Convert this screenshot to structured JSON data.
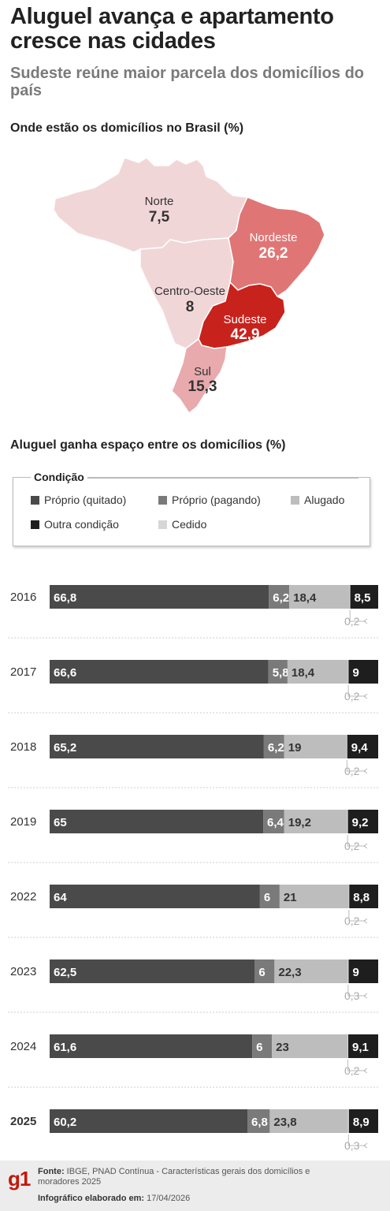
{
  "header": {
    "title": "Aluguel avança e apartamento cresce nas cidades",
    "subtitle": "Sudeste reúne maior parcela dos domicílios do país"
  },
  "map_section": {
    "title": "Onde estão os domicílios no Brasil (%)",
    "regions": [
      {
        "name": "Norte",
        "value": "7,5",
        "color": "#f1d6d8"
      },
      {
        "name": "Nordeste",
        "value": "26,2",
        "color": "#df7675"
      },
      {
        "name": "Centro-Oeste",
        "value": "8",
        "color": "#f1d6d8"
      },
      {
        "name": "Sudeste",
        "value": "42,9",
        "color": "#c8221c"
      },
      {
        "name": "Sul",
        "value": "15,3",
        "color": "#e8aaad"
      }
    ]
  },
  "bar_section": {
    "title": "Aluguel ganha espaço entre os domicílios (%)"
  },
  "legend": {
    "title": "Condição",
    "items": [
      {
        "label": "Próprio (quitado)",
        "color": "#4a4a4a"
      },
      {
        "label": "Próprio (pagando)",
        "color": "#7a7a7a"
      },
      {
        "label": "Alugado",
        "color": "#bdbdbd"
      },
      {
        "label": "Outra condição",
        "color": "#1e1e1e"
      },
      {
        "label": "Cedido",
        "color": "#d6d6d6"
      }
    ]
  },
  "chart_data": {
    "type": "bar",
    "orientation": "horizontal",
    "stacked": true,
    "xlim": [
      0,
      100
    ],
    "categories": [
      "2016",
      "2017",
      "2018",
      "2019",
      "2022",
      "2023",
      "2024",
      "2025"
    ],
    "segment_order": [
      "Próprio (quitado)",
      "Próprio (pagando)",
      "Alugado",
      "Cedido",
      "Outra condição"
    ],
    "series": [
      {
        "name": "Próprio (quitado)",
        "color": "#4a4a4a",
        "values": [
          66.8,
          66.6,
          65.2,
          65,
          64,
          62.5,
          61.6,
          60.2
        ],
        "labels": [
          "66,8",
          "66,6",
          "65,2",
          "65",
          "64",
          "62,5",
          "61,6",
          "60,2"
        ]
      },
      {
        "name": "Próprio (pagando)",
        "color": "#7a7a7a",
        "values": [
          6.2,
          5.8,
          6.2,
          6.4,
          6,
          6,
          6,
          6.8
        ],
        "labels": [
          "6,2",
          "5,8",
          "6,2",
          "6,4",
          "6",
          "6",
          "6",
          "6,8"
        ]
      },
      {
        "name": "Alugado",
        "color": "#bdbdbd",
        "values": [
          18.4,
          18.4,
          19,
          19.2,
          21,
          22.3,
          23,
          23.8
        ],
        "labels": [
          "18,4",
          "18,4",
          "19",
          "19,2",
          "21",
          "22,3",
          "23",
          "23,8"
        ]
      },
      {
        "name": "Cedido",
        "color": "#d6d6d6",
        "values": [
          0.2,
          0.2,
          0.2,
          0.2,
          0.2,
          0.3,
          0.2,
          0.3
        ],
        "labels": [
          "0,2",
          "0,2",
          "0,2",
          "0,2",
          "0,2",
          "0,3",
          "0,2",
          "0,3"
        ]
      },
      {
        "name": "Outra condição",
        "color": "#1e1e1e",
        "values": [
          8.5,
          9,
          9.4,
          9.2,
          8.8,
          9,
          9.1,
          8.9
        ],
        "labels": [
          "8,5",
          "9",
          "9,4",
          "9,2",
          "8,8",
          "9",
          "9,1",
          "8,9"
        ]
      }
    ],
    "highlighted_category": "2025"
  },
  "footer": {
    "logo": "g1",
    "source_label": "Fonte:",
    "source_text": "IBGE, PNAD Contínua - Características gerais dos domicílios e moradores 2025",
    "date_label": "Infográfico elaborado em:",
    "date_text": "17/04/2026"
  }
}
